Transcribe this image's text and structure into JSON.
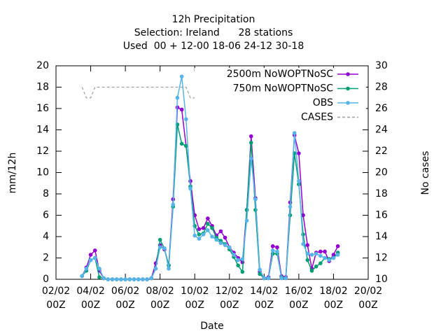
{
  "chart_data": {
    "type": "line",
    "title": [
      "12h Precipitation",
      "Selection: Ireland      28 stations",
      "Used  00 + 12-00 18-06 24-12 30-18"
    ],
    "xlabel": "Date",
    "ylabel": "mm/12h",
    "y2label": "No cases",
    "x": [
      "03/02 12Z",
      "03/02 18Z",
      "04/02 00Z",
      "04/02 06Z",
      "04/02 12Z",
      "04/02 18Z",
      "05/02 00Z",
      "05/02 06Z",
      "05/02 12Z",
      "05/02 18Z",
      "06/02 00Z",
      "06/02 06Z",
      "06/02 12Z",
      "06/02 18Z",
      "07/02 00Z",
      "07/02 06Z",
      "07/02 12Z",
      "07/02 18Z",
      "08/02 00Z",
      "08/02 06Z",
      "08/02 12Z",
      "08/02 18Z",
      "09/02 00Z",
      "09/02 06Z",
      "09/02 12Z",
      "09/02 18Z",
      "10/02 00Z",
      "10/02 06Z",
      "10/02 12Z",
      "10/02 18Z",
      "11/02 00Z",
      "11/02 06Z",
      "11/02 12Z",
      "11/02 18Z",
      "12/02 00Z",
      "12/02 06Z",
      "12/02 12Z",
      "12/02 18Z",
      "13/02 00Z",
      "13/02 06Z",
      "13/02 12Z",
      "13/02 18Z",
      "14/02 00Z",
      "14/02 06Z",
      "14/02 12Z",
      "14/02 18Z",
      "15/02 00Z",
      "15/02 06Z",
      "15/02 12Z",
      "15/02 18Z",
      "16/02 00Z",
      "16/02 06Z",
      "16/02 12Z",
      "16/02 18Z",
      "17/02 00Z",
      "17/02 06Z",
      "17/02 12Z",
      "17/02 18Z",
      "18/02 00Z",
      "18/02 06Z"
    ],
    "series": [
      {
        "name": "2500m NoWOPTNoSC",
        "color": "#9400d3",
        "values": [
          0.3,
          1.1,
          2.3,
          2.7,
          0.8,
          0.1,
          0,
          0,
          0,
          0,
          0,
          0,
          0,
          0,
          0,
          0,
          0.1,
          1.5,
          3.2,
          2.8,
          1.3,
          7.5,
          16.1,
          15.9,
          12.5,
          9.2,
          6.0,
          4.7,
          4.8,
          5.7,
          5.0,
          4.1,
          4.5,
          3.9,
          3.0,
          2.5,
          2.0,
          1.6,
          6.5,
          13.4,
          7.6,
          0.7,
          0.1,
          0.2,
          3.1,
          3.0,
          0.3,
          0.2,
          7.2,
          13.5,
          11.8,
          6.0,
          3.2,
          1.0,
          2.5,
          2.6,
          2.6,
          1.7,
          2.3,
          3.1
        ]
      },
      {
        "name": "750m NoWOPTNoSC",
        "color": "#009e73",
        "values": [
          0.3,
          0.8,
          1.8,
          2.0,
          0.2,
          0.1,
          0,
          0,
          0,
          0,
          0,
          0,
          0,
          0,
          0,
          0,
          0.1,
          1.0,
          3.7,
          2.9,
          1.3,
          6.8,
          14.5,
          12.7,
          12.5,
          8.7,
          5.0,
          4.2,
          4.3,
          5.2,
          4.8,
          3.9,
          3.6,
          3.3,
          2.8,
          2.1,
          1.3,
          0.7,
          6.5,
          12.8,
          6.5,
          0.5,
          0.1,
          0.1,
          2.4,
          2.4,
          0.2,
          0.1,
          6.0,
          11.8,
          8.9,
          4.2,
          1.8,
          0.8,
          1.2,
          1.5,
          2.0,
          1.9,
          2.0,
          2.5
        ]
      },
      {
        "name": "OBS",
        "color": "#56b4e9",
        "values": [
          0.3,
          1.0,
          1.8,
          2.0,
          1.0,
          0.1,
          0,
          0,
          0,
          0,
          0,
          0,
          0,
          0,
          0,
          0,
          0.1,
          1.0,
          3.0,
          2.9,
          1.0,
          7.0,
          17.0,
          19.0,
          15.0,
          8.5,
          4.1,
          3.8,
          4.2,
          4.6,
          4.0,
          3.7,
          3.4,
          3.2,
          3.0,
          2.3,
          1.8,
          1.9,
          5.5,
          11.3,
          7.5,
          0.9,
          0.1,
          0.1,
          2.7,
          2.6,
          0.1,
          0.1,
          6.8,
          13.7,
          9.2,
          3.3,
          2.4,
          2.3,
          2.4,
          2.2,
          2.0,
          1.8,
          2.0,
          2.3
        ]
      },
      {
        "name": "CASES",
        "color": "#a0a0a0",
        "axis": "y2",
        "dashed": true,
        "values": [
          28,
          27,
          27,
          28,
          28,
          28,
          28,
          28,
          28,
          28,
          28,
          28,
          28,
          28,
          28,
          28,
          28,
          28,
          28,
          28,
          28,
          28,
          28,
          28,
          28,
          27,
          27,
          28,
          28,
          28,
          28,
          28,
          28,
          28,
          28,
          28,
          28,
          28,
          28,
          28,
          28,
          28,
          28,
          28,
          28,
          28,
          28,
          28,
          28,
          28,
          28,
          28,
          28,
          28,
          28,
          28,
          28,
          28,
          28,
          28
        ]
      }
    ],
    "xlim": [
      "02/02 00Z",
      "20/02 00Z"
    ],
    "xticks": [
      "02/02 00Z",
      "04/02 00Z",
      "06/02 00Z",
      "08/02 00Z",
      "10/02 00Z",
      "12/02 00Z",
      "14/02 00Z",
      "16/02 00Z",
      "18/02 00Z",
      "20/02 00Z"
    ],
    "ylim": [
      0,
      20
    ],
    "yticks": [
      0,
      2,
      4,
      6,
      8,
      10,
      12,
      14,
      16,
      18,
      20
    ],
    "y2lim": [
      10,
      30
    ],
    "y2ticks": [
      10,
      12,
      14,
      16,
      18,
      20,
      22,
      24,
      26,
      28,
      30
    ],
    "grid": false,
    "legend": "top-right"
  }
}
